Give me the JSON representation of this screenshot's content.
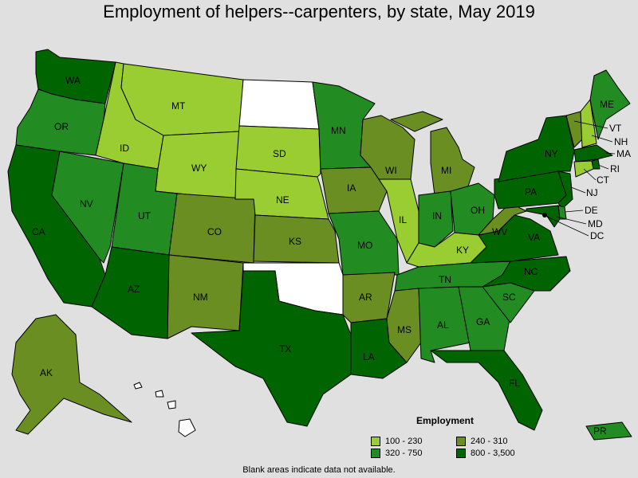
{
  "title": "Employment of helpers--carpenters, by state, May 2019",
  "legend": {
    "title": "Employment",
    "items": [
      {
        "label": "100 - 230",
        "color": "#9acd32"
      },
      {
        "label": "240 - 310",
        "color": "#6b8e23"
      },
      {
        "label": "320 - 750",
        "color": "#228b22"
      },
      {
        "label": "800 - 3,500",
        "color": "#006400"
      }
    ]
  },
  "note": "Blank areas indicate data not available.",
  "colors": {
    "c1": "#9acd32",
    "c2": "#6b8e23",
    "c3": "#228b22",
    "c4": "#006400",
    "na": "#ffffff"
  },
  "states": {
    "WA": "WA",
    "OR": "OR",
    "CA": "CA",
    "NV": "NV",
    "ID": "ID",
    "MT": "MT",
    "WY": "WY",
    "UT": "UT",
    "AZ": "AZ",
    "CO": "CO",
    "NM": "NM",
    "ND": "",
    "SD": "SD",
    "NE": "NE",
    "KS": "KS",
    "OK": "",
    "TX": "TX",
    "MN": "MN",
    "IA": "IA",
    "MO": "MO",
    "AR": "AR",
    "LA": "LA",
    "WI": "WI",
    "IL": "IL",
    "MI": "MI",
    "IN": "IN",
    "OH": "OH",
    "KY": "KY",
    "TN": "TN",
    "MS": "MS",
    "AL": "AL",
    "GA": "GA",
    "FL": "FL",
    "SC": "SC",
    "NC": "NC",
    "VA": "VA",
    "WV": "WV",
    "PA": "PA",
    "NY": "NY",
    "VT": "VT",
    "NH": "NH",
    "ME": "ME",
    "MA": "MA",
    "RI": "RI",
    "CT": "CT",
    "NJ": "NJ",
    "DE": "DE",
    "MD": "MD",
    "DC": "DC",
    "AK": "AK",
    "HI": "",
    "PR": "PR"
  }
}
